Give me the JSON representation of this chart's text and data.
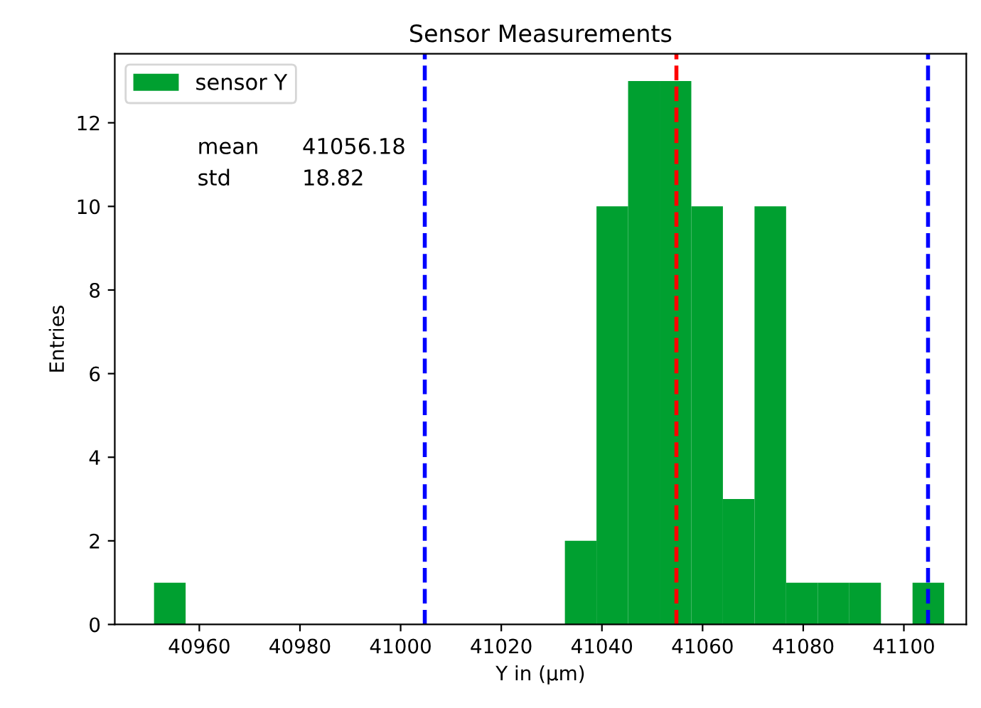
{
  "chart_data": {
    "type": "histogram",
    "title": "Sensor Measurements",
    "xlabel": "Y in (µm)",
    "ylabel": "Entries",
    "bins": [
      40951.0,
      40957.28,
      40963.56,
      40969.84,
      40976.12,
      40982.4,
      40988.68,
      40994.96,
      41001.24,
      41007.52,
      41013.8,
      41020.08,
      41026.36,
      41032.64,
      41038.92,
      41045.2,
      41051.48,
      41057.76,
      41064.04,
      41070.32,
      41076.6,
      41082.88,
      41089.16,
      41095.44,
      41101.72,
      41108.0
    ],
    "series": [
      {
        "name": "sensor Y",
        "color": "#00a030",
        "values": [
          1,
          0,
          0,
          0,
          0,
          0,
          0,
          0,
          0,
          0,
          0,
          0,
          0,
          2,
          10,
          13,
          13,
          10,
          3,
          10,
          1,
          1,
          1,
          0,
          1
        ]
      }
    ],
    "ref_lines": [
      {
        "axis": "x",
        "value": 41004.8,
        "color": "#0000ff",
        "line_style": "dashed"
      },
      {
        "axis": "x",
        "value": 41054.8,
        "color": "#ff0000",
        "line_style": "dashed"
      },
      {
        "axis": "x",
        "value": 41104.8,
        "color": "#0000ff",
        "line_style": "dashed"
      }
    ],
    "annotations": [
      "mean",
      "41056.18",
      "std",
      "18.82"
    ],
    "xlim": [
      40943.2,
      41112.4
    ],
    "ylim": [
      0,
      13.65
    ],
    "xticks": [
      40960,
      40980,
      41000,
      41020,
      41040,
      41060,
      41080,
      41100
    ],
    "yticks": [
      0,
      2,
      4,
      6,
      8,
      10,
      12
    ],
    "grid": false,
    "legend": "top left"
  }
}
